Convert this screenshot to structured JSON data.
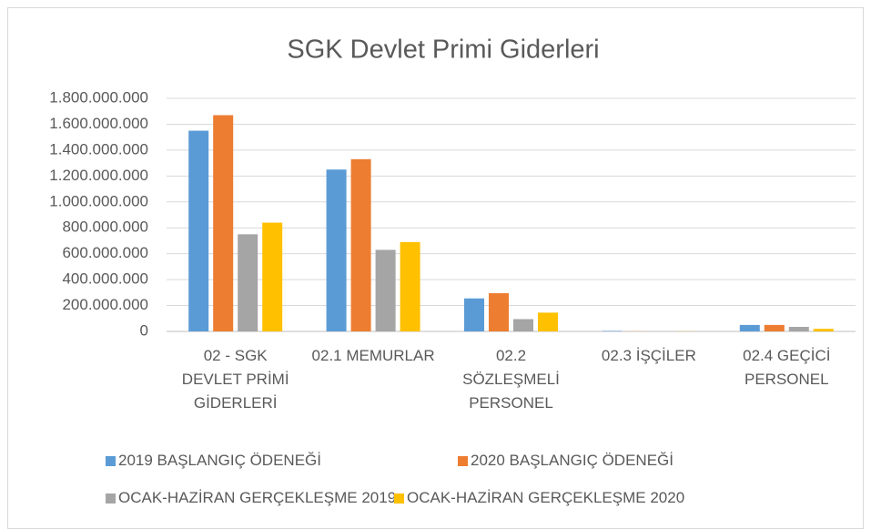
{
  "chart_data": {
    "type": "bar",
    "title": "SGK Devlet Primi Giderleri",
    "categories": [
      "02 - SGK DEVLET PRİMİ GİDERLERİ",
      "02.1 MEMURLAR",
      "02.2 SÖZLEŞMELİ PERSONEL",
      "02.3 İŞÇİLER",
      "02.4 GEÇİCİ PERSONEL"
    ],
    "series": [
      {
        "name": "2019 BAŞLANGIÇ ÖDENEĞİ",
        "color": "#5b9bd5",
        "values": [
          1550000000,
          1250000000,
          255000000,
          4000000,
          50000000
        ]
      },
      {
        "name": "2020 BAŞLANGIÇ ÖDENEĞİ",
        "color": "#ed7d31",
        "values": [
          1670000000,
          1330000000,
          295000000,
          1000000,
          50000000
        ]
      },
      {
        "name": "OCAK-HAZİRAN GERÇEKLEŞME 2019",
        "color": "#a5a5a5",
        "values": [
          750000000,
          630000000,
          95000000,
          1000000,
          35000000
        ]
      },
      {
        "name": "OCAK-HAZİRAN GERÇEKLEŞME 2020",
        "color": "#ffc000",
        "values": [
          840000000,
          690000000,
          145000000,
          1000000,
          20000000
        ]
      }
    ],
    "ylim": [
      0,
      1800000000
    ],
    "yticks": [
      0,
      {
        "value": 200000000,
        "label": "200.000.000"
      },
      {
        "value": 400000000,
        "label": "400.000.000"
      },
      {
        "value": 600000000,
        "label": "600.000.000"
      },
      {
        "value": 800000000,
        "label": "800.000.000"
      },
      {
        "value": 1000000000,
        "label": "1.000.000.000"
      },
      {
        "value": 1200000000,
        "label": "1.200.000.000"
      },
      {
        "value": 1400000000,
        "label": "1.400.000.000"
      },
      {
        "value": 1600000000,
        "label": "1.600.000.000"
      },
      {
        "value": 1800000000,
        "label": "1.800.000.000"
      }
    ],
    "grid": true,
    "legend": "bottom"
  }
}
